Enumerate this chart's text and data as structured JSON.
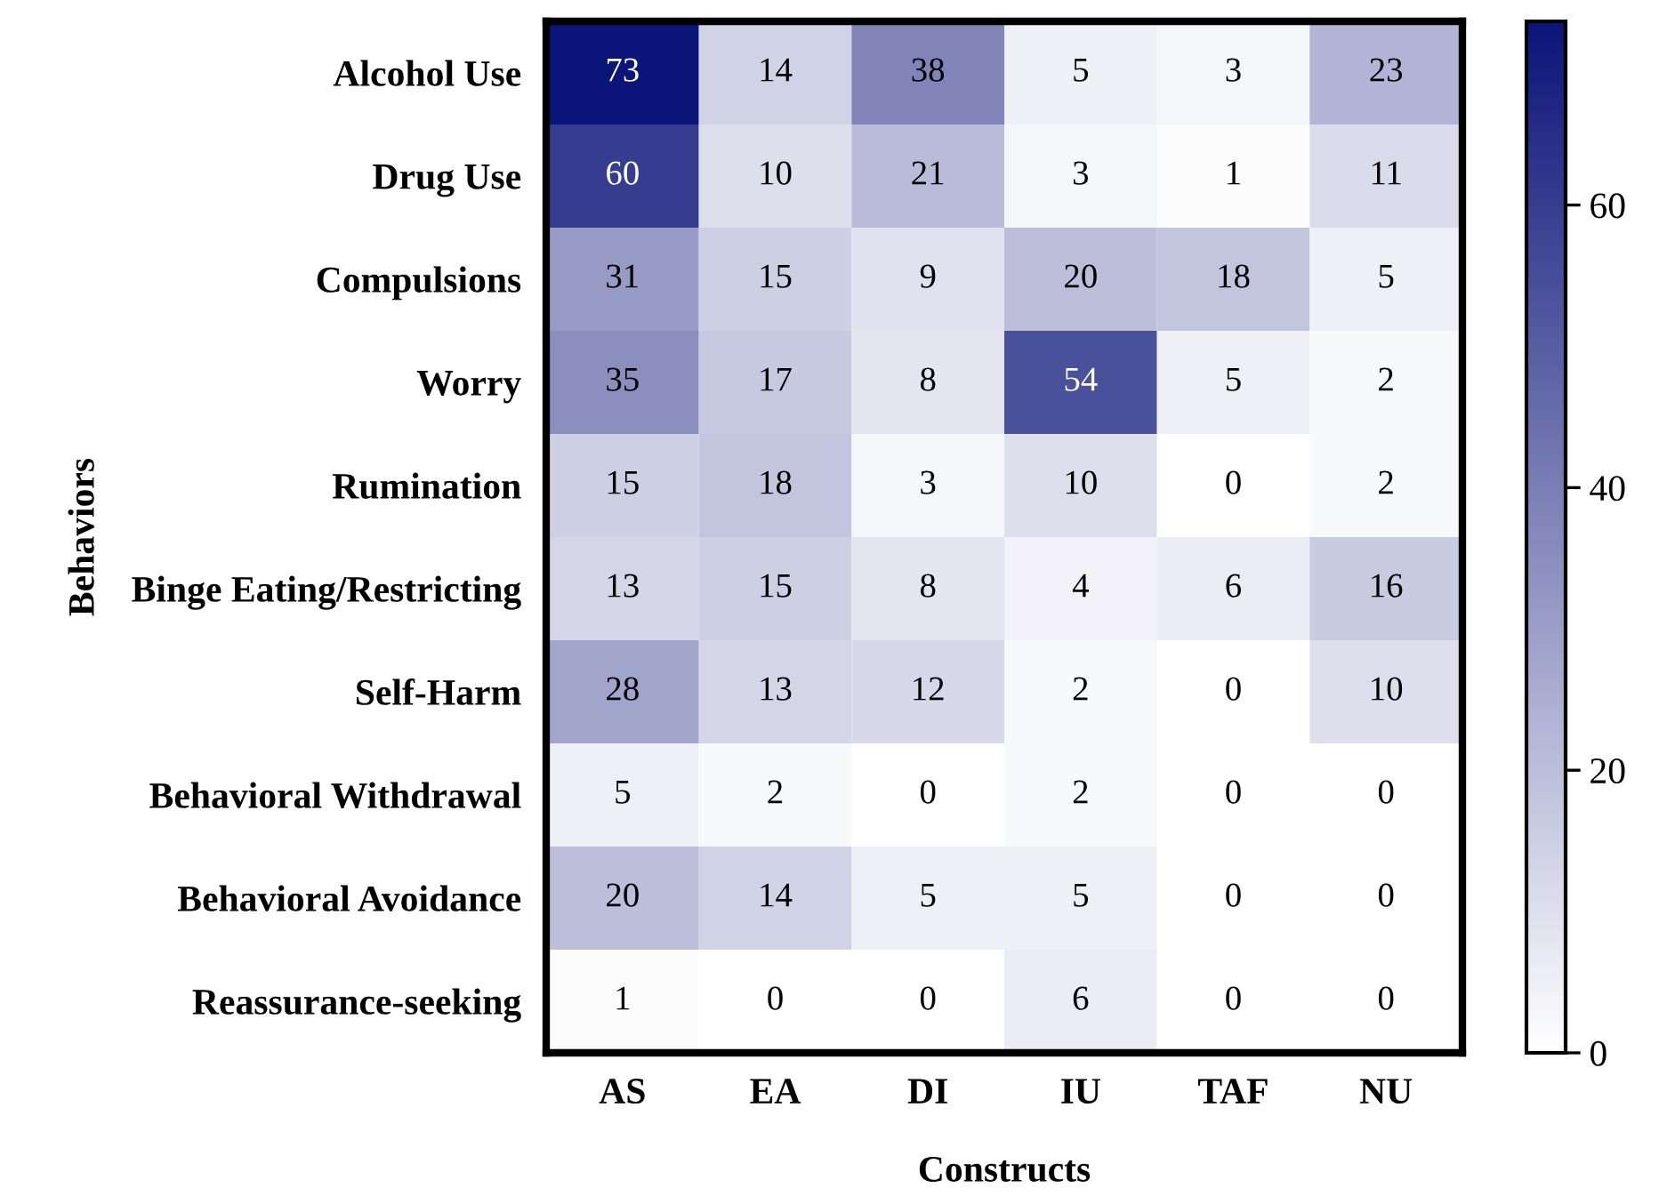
{
  "chart_data": {
    "type": "heatmap",
    "xlabel": "Constructs",
    "ylabel": "Behaviors",
    "categories": [
      "AS",
      "EA",
      "DI",
      "IU",
      "TAF",
      "NU"
    ],
    "y_categories": [
      "Alcohol Use",
      "Drug Use",
      "Compulsions",
      "Worry",
      "Rumination",
      "Binge Eating/Restricting",
      "Self-Harm",
      "Behavioral Withdrawal",
      "Behavioral Avoidance",
      "Reassurance-seeking"
    ],
    "cells": [
      [
        73,
        14,
        38,
        5,
        3,
        23
      ],
      [
        60,
        10,
        21,
        3,
        1,
        11
      ],
      [
        31,
        15,
        9,
        20,
        18,
        5
      ],
      [
        35,
        17,
        8,
        54,
        5,
        2
      ],
      [
        15,
        18,
        3,
        10,
        0,
        2
      ],
      [
        13,
        15,
        8,
        4,
        6,
        16
      ],
      [
        28,
        13,
        12,
        2,
        0,
        10
      ],
      [
        5,
        2,
        0,
        2,
        0,
        0
      ],
      [
        20,
        14,
        5,
        5,
        0,
        0
      ],
      [
        1,
        0,
        0,
        6,
        0,
        0
      ]
    ],
    "data_labels": true,
    "colors": [
      "#ffffff",
      "#0b1478"
    ],
    "clim": [
      0,
      73
    ],
    "cticks": [
      0,
      20,
      40,
      60
    ]
  }
}
